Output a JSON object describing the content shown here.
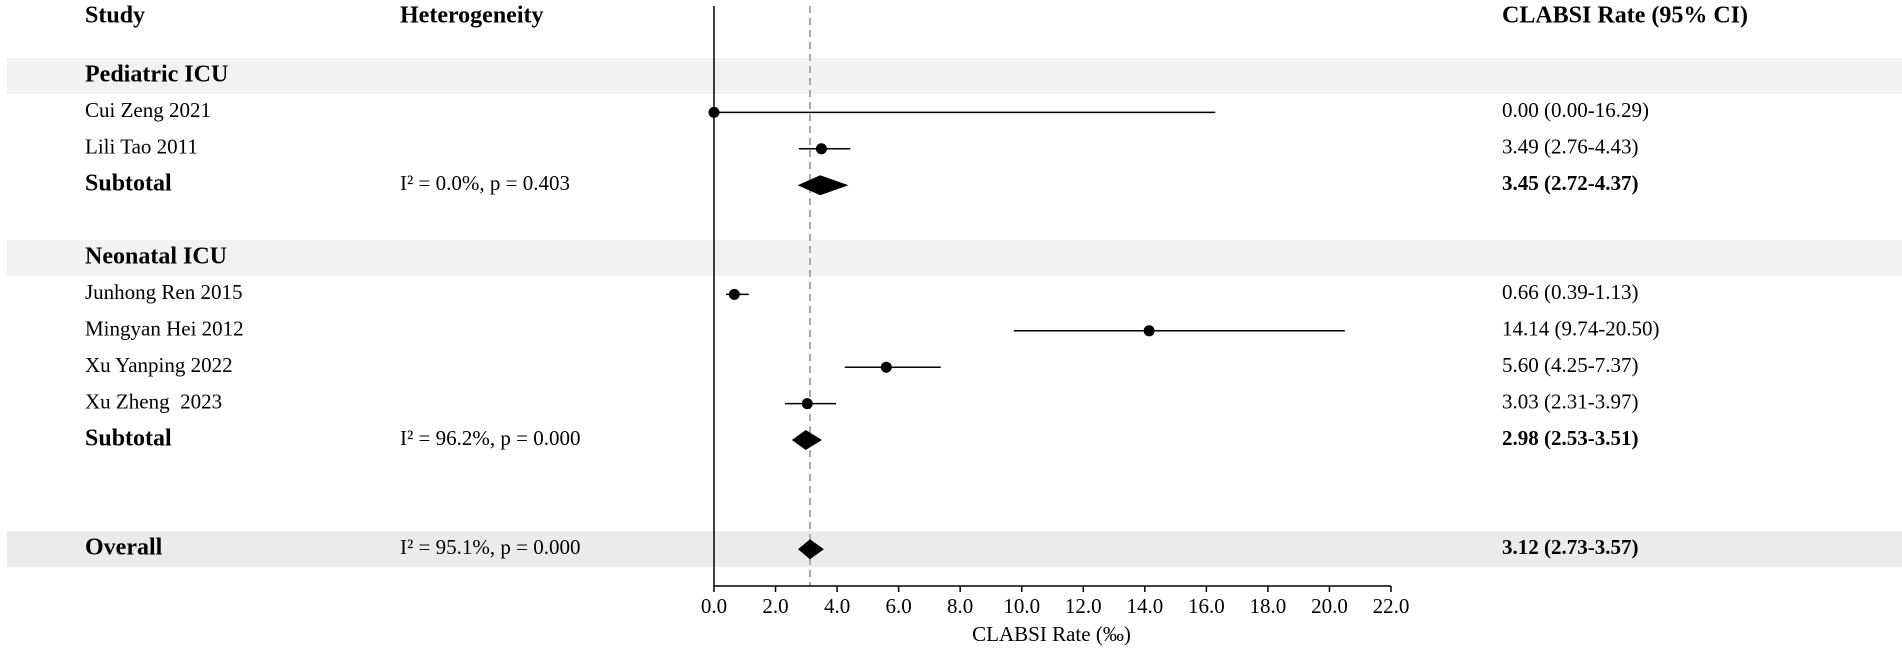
{
  "chart_data": {
    "type": "forest",
    "columns": [
      "Study",
      "Heterogeneity",
      "CLABSI Rate (95% CI)"
    ],
    "xlabel": "CLABSI Rate (‰)",
    "xlim": [
      0,
      22
    ],
    "xticks": [
      {
        "value": 0,
        "label": "0.0"
      },
      {
        "value": 2,
        "label": "2.0"
      },
      {
        "value": 4,
        "label": "4.0"
      },
      {
        "value": 6,
        "label": "6.0"
      },
      {
        "value": 8,
        "label": "8.0"
      },
      {
        "value": 10,
        "label": "10.0"
      },
      {
        "value": 12,
        "label": "12.0"
      },
      {
        "value": 14,
        "label": "14.0"
      },
      {
        "value": 16,
        "label": "16.0"
      },
      {
        "value": 18,
        "label": "18.0"
      },
      {
        "value": 20,
        "label": "20.0"
      },
      {
        "value": 22,
        "label": "22.0"
      }
    ],
    "groups": [
      {
        "name": "Pediatric ICU",
        "studies": [
          {
            "name": "Cui Zeng 2021",
            "estimate": 0.0,
            "lower": 0.0,
            "upper": 16.29,
            "ci_label": "0.00 (0.00-16.29)"
          },
          {
            "name": "Lili Tao 2011",
            "estimate": 3.49,
            "lower": 2.76,
            "upper": 4.43,
            "ci_label": "3.49 (2.76-4.43)"
          }
        ],
        "subtotal": {
          "name": "Subtotal",
          "heterogeneity": "I² = 0.0%, p = 0.403",
          "estimate": 3.45,
          "lower": 2.72,
          "upper": 4.37,
          "ci_label": "3.45 (2.72-4.37)"
        }
      },
      {
        "name": "Neonatal ICU",
        "studies": [
          {
            "name": "Junhong Ren 2015",
            "estimate": 0.66,
            "lower": 0.39,
            "upper": 1.13,
            "ci_label": "0.66 (0.39-1.13)"
          },
          {
            "name": "Mingyan Hei 2012",
            "estimate": 14.14,
            "lower": 9.74,
            "upper": 20.5,
            "ci_label": "14.14 (9.74-20.50)"
          },
          {
            "name": "Xu Yanping 2022",
            "estimate": 5.6,
            "lower": 4.25,
            "upper": 7.37,
            "ci_label": "5.60 (4.25-7.37)"
          },
          {
            "name": "Xu Zheng  2023",
            "estimate": 3.03,
            "lower": 2.31,
            "upper": 3.97,
            "ci_label": "3.03 (2.31-3.97)"
          }
        ],
        "subtotal": {
          "name": "Subtotal",
          "heterogeneity": "I² = 96.2%, p = 0.000",
          "estimate": 2.98,
          "lower": 2.53,
          "upper": 3.51,
          "ci_label": "2.98 (2.53-3.51)"
        }
      }
    ],
    "overall": {
      "name": "Overall",
      "heterogeneity": "I² = 95.1%, p = 0.000",
      "estimate": 3.12,
      "lower": 2.73,
      "upper": 3.57,
      "ci_label": "3.12 (2.73-3.57)"
    }
  }
}
